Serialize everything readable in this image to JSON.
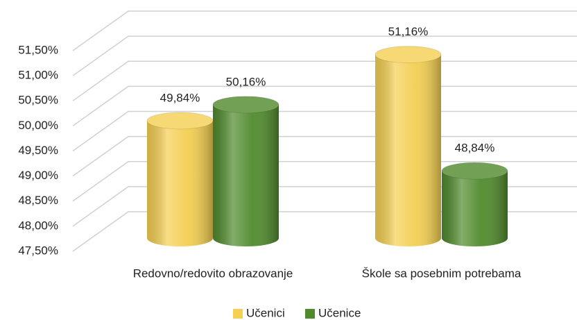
{
  "chart_data": {
    "type": "bar3d",
    "categories": [
      "Redovno/redovito obrazovanje",
      "Škole sa posebnim potrebama"
    ],
    "series": [
      {
        "name": "Učenici",
        "color": "#f4cf52",
        "values": [
          49.84,
          51.16
        ],
        "value_labels": [
          "49,84%",
          "51,16%"
        ]
      },
      {
        "name": "Učenice",
        "color": "#4f8a2c",
        "values": [
          50.16,
          48.84
        ],
        "value_labels": [
          "50,16%",
          "48,84%"
        ]
      }
    ],
    "ylim": [
      47.5,
      51.5
    ],
    "yticks": [
      {
        "value": 47.5,
        "label": "47,50%"
      },
      {
        "value": 48,
        "label": "48,00%"
      },
      {
        "value": 48.5,
        "label": "48,50%"
      },
      {
        "value": 49,
        "label": "49,00%"
      },
      {
        "value": 49.5,
        "label": "49,50%"
      },
      {
        "value": 50,
        "label": "50,00%"
      },
      {
        "value": 50.5,
        "label": "50,50%"
      },
      {
        "value": 51,
        "label": "51,00%"
      },
      {
        "value": 51.5,
        "label": "51,50%"
      }
    ],
    "grid": true,
    "legend": "bottom"
  }
}
